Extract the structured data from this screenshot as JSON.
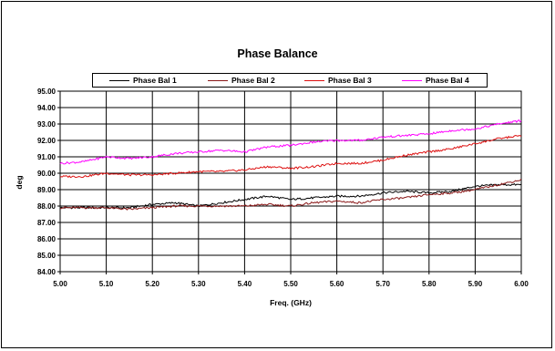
{
  "chart_data": {
    "type": "line",
    "title": "Phase Balance",
    "xlabel": "Freq. (GHz)",
    "ylabel": "deg",
    "xlim": [
      5.0,
      6.0
    ],
    "ylim": [
      84.0,
      95.0
    ],
    "xticks": [
      "5.00",
      "5.10",
      "5.20",
      "5.30",
      "5.40",
      "5.50",
      "5.60",
      "5.70",
      "5.80",
      "5.90",
      "6.00"
    ],
    "yticks": [
      "84.00",
      "85.00",
      "86.00",
      "87.00",
      "88.00",
      "89.00",
      "90.00",
      "91.00",
      "92.00",
      "93.00",
      "94.00",
      "95.00"
    ],
    "grid": true,
    "legend_position": "top",
    "x": [
      5.0,
      5.05,
      5.1,
      5.15,
      5.2,
      5.25,
      5.3,
      5.35,
      5.4,
      5.45,
      5.5,
      5.55,
      5.6,
      5.65,
      5.7,
      5.75,
      5.8,
      5.85,
      5.9,
      5.95,
      6.0
    ],
    "series": [
      {
        "name": "Phase Bal 1",
        "color": "#000000",
        "values": [
          87.9,
          87.9,
          87.9,
          87.9,
          88.1,
          88.2,
          88.0,
          88.2,
          88.4,
          88.6,
          88.4,
          88.5,
          88.6,
          88.6,
          88.8,
          88.9,
          88.8,
          88.9,
          89.2,
          89.3,
          89.3
        ]
      },
      {
        "name": "Phase Bal 2",
        "color": "#8B1A1A",
        "values": [
          87.9,
          87.9,
          87.9,
          87.8,
          87.9,
          88.0,
          88.0,
          88.0,
          88.0,
          88.1,
          88.0,
          88.2,
          88.3,
          88.2,
          88.4,
          88.5,
          88.7,
          88.8,
          89.0,
          89.3,
          89.6
        ]
      },
      {
        "name": "Phase Bal 3",
        "color": "#DD1111",
        "values": [
          89.8,
          89.8,
          90.0,
          89.9,
          89.9,
          90.0,
          90.1,
          90.1,
          90.2,
          90.4,
          90.3,
          90.4,
          90.6,
          90.6,
          90.8,
          91.1,
          91.3,
          91.5,
          91.8,
          92.1,
          92.3
        ]
      },
      {
        "name": "Phase Bal 4",
        "color": "#FF00FF",
        "values": [
          90.6,
          90.7,
          91.0,
          90.9,
          91.0,
          91.2,
          91.3,
          91.4,
          91.3,
          91.6,
          91.7,
          91.9,
          92.0,
          92.0,
          92.2,
          92.3,
          92.4,
          92.6,
          92.7,
          93.0,
          93.2
        ]
      }
    ]
  }
}
